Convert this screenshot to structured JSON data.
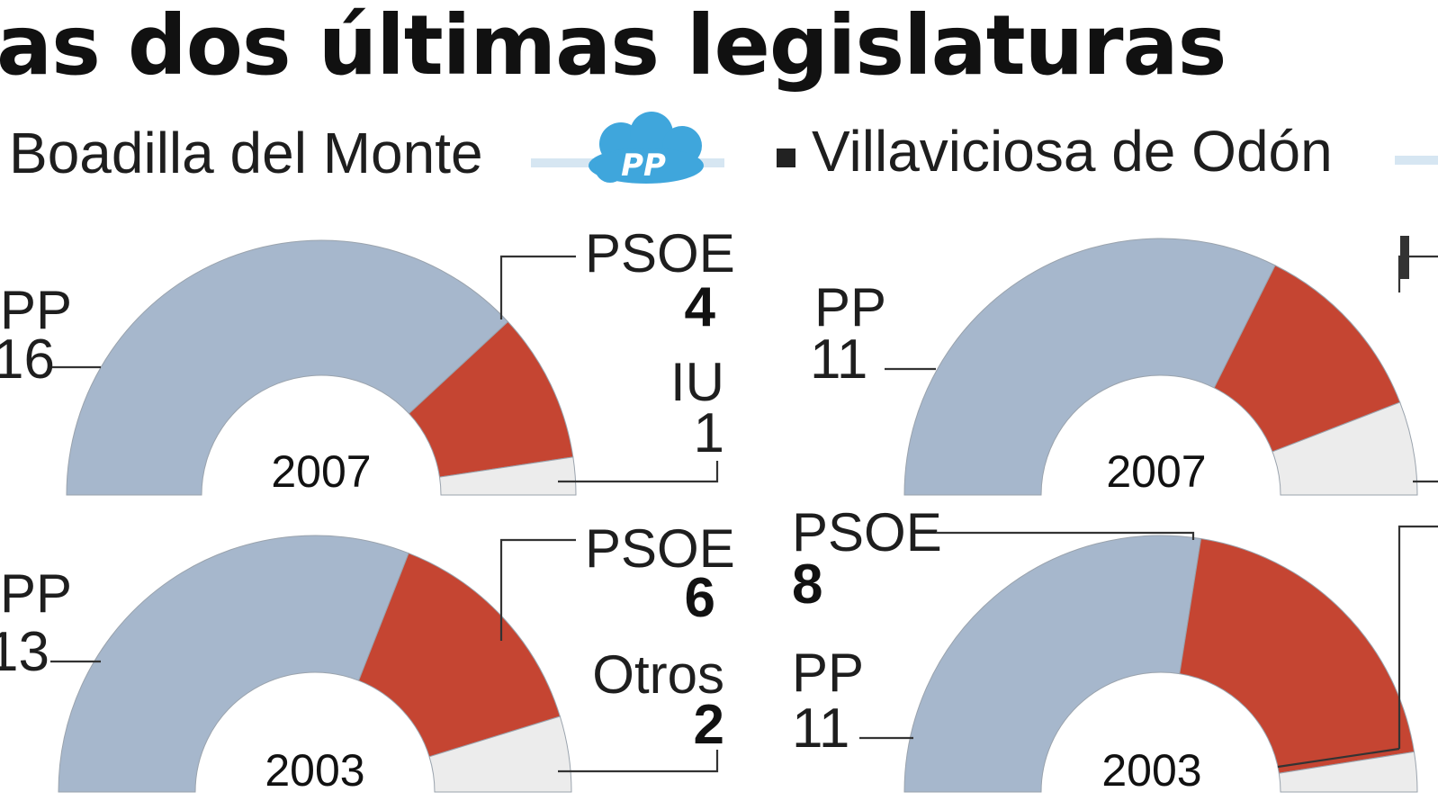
{
  "title": "as dos últimas legislaturas",
  "municipalities": [
    {
      "name": "Boadilla del Monte",
      "logo_text": "PP"
    },
    {
      "name": "Villaviciosa de Odón"
    }
  ],
  "colors": {
    "PP": "#a6b7cc",
    "PSOE": "#c54532",
    "Otros": "#ececec",
    "logo": "#3fa6dc"
  },
  "chart_data": [
    {
      "type": "pie",
      "municipality": "Boadilla del Monte",
      "year": "2007",
      "series": [
        {
          "name": "PP",
          "label": "PP",
          "value_text": "16",
          "value": 16
        },
        {
          "name": "PSOE",
          "label": "PSOE",
          "value_text": "4",
          "value": 4
        },
        {
          "name": "IU",
          "label": "IU",
          "value_text": "1",
          "value": 1
        }
      ]
    },
    {
      "type": "pie",
      "municipality": "Boadilla del Monte",
      "year": "2003",
      "series": [
        {
          "name": "PP",
          "label": "PP",
          "value_text": "13",
          "value": 13
        },
        {
          "name": "PSOE",
          "label": "PSOE",
          "value_text": "6",
          "value": 6
        },
        {
          "name": "Otros",
          "label": "Otros",
          "value_text": "2",
          "value": 2
        }
      ]
    },
    {
      "type": "pie",
      "municipality": "Villaviciosa de Odón",
      "year": "2007",
      "series": [
        {
          "name": "PP",
          "label": "PP",
          "value_text": "11",
          "value": 11
        },
        {
          "name": "PSOE",
          "value": 4
        },
        {
          "name": "Otros",
          "value": 2
        }
      ]
    },
    {
      "type": "pie",
      "municipality": "Villaviciosa de Odón",
      "year": "2003",
      "series": [
        {
          "name": "PP",
          "label": "PP",
          "value_text": "11",
          "value": 11
        },
        {
          "name": "PSOE",
          "label": "PSOE",
          "value_text": "8",
          "value": 8
        },
        {
          "name": "Otros",
          "value": 1
        }
      ]
    }
  ]
}
